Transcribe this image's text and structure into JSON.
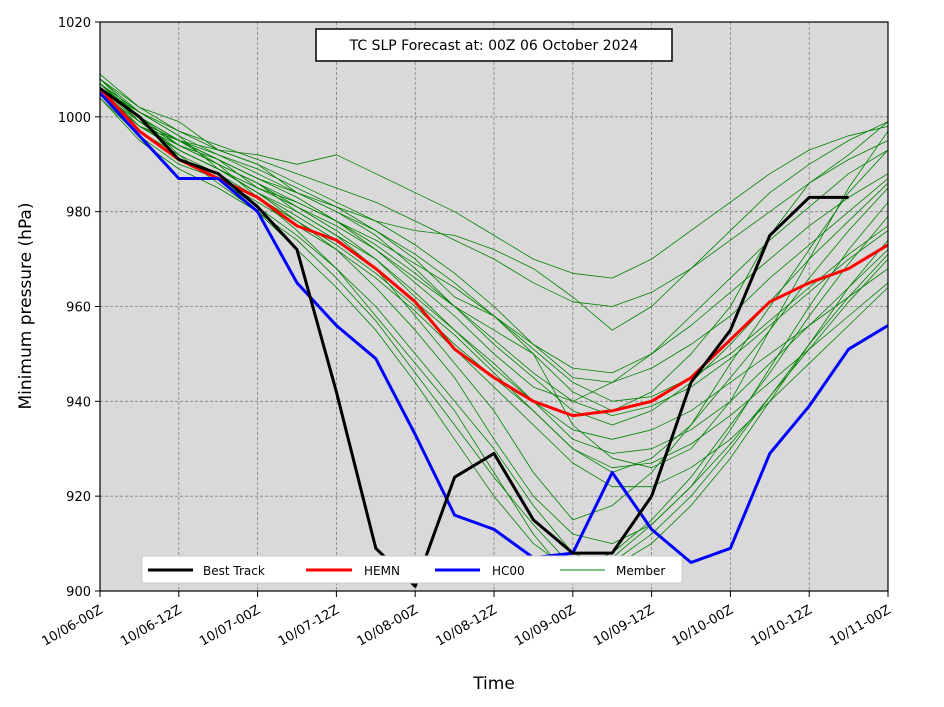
{
  "chart_data": {
    "type": "line",
    "title": "TC SLP Forecast at: 00Z 06 October 2024",
    "xlabel": "Time",
    "ylabel": "Minimum pressure (hPa)",
    "ylim": [
      900,
      1020
    ],
    "yticks": [
      900,
      920,
      940,
      960,
      980,
      1000,
      1020
    ],
    "xticks": [
      "10/06-00Z",
      "10/06-12Z",
      "10/07-00Z",
      "10/07-12Z",
      "10/08-00Z",
      "10/08-12Z",
      "10/09-00Z",
      "10/09-12Z",
      "10/10-00Z",
      "10/10-12Z",
      "10/11-00Z"
    ],
    "x_step_hours": 6,
    "grid": true,
    "legend_position": "bottom",
    "series": [
      {
        "name": "Best Track",
        "color": "#000000",
        "values": [
          1006,
          1000,
          991,
          988,
          981,
          972,
          942,
          909,
          901,
          924,
          929,
          915,
          908,
          908,
          920,
          944,
          955,
          975,
          983,
          983
        ]
      },
      {
        "name": "HEMN",
        "color": "#ff0000",
        "values": [
          1006,
          997,
          991,
          987,
          983,
          977,
          974,
          968,
          961,
          951,
          945,
          940,
          937,
          938,
          940,
          945,
          953,
          961,
          965,
          968,
          973
        ]
      },
      {
        "name": "HC00",
        "color": "#0000ff",
        "values": [
          1005,
          996,
          987,
          987,
          980,
          965,
          956,
          949,
          933,
          916,
          913,
          907,
          908,
          925,
          913,
          906,
          909,
          929,
          939,
          951,
          956
        ]
      },
      {
        "name": "Member",
        "color": "#008000",
        "members": [
          [
            1009,
            1002,
            999,
            993,
            990,
            984,
            980,
            976,
            970,
            962,
            958,
            950,
            935,
            928,
            926,
            930,
            940,
            955,
            970,
            985,
            997
          ],
          [
            1007,
            1000,
            994,
            990,
            986,
            980,
            975,
            968,
            958,
            948,
            938,
            925,
            915,
            918,
            925,
            935,
            948,
            960,
            972,
            984,
            993
          ],
          [
            1006,
            998,
            995,
            991,
            985,
            982,
            978,
            972,
            966,
            960,
            955,
            950,
            942,
            938,
            942,
            950,
            960,
            975,
            986,
            992,
            999
          ],
          [
            1008,
            1001,
            996,
            989,
            984,
            978,
            972,
            964,
            955,
            945,
            932,
            920,
            912,
            910,
            914,
            922,
            934,
            947,
            960,
            972,
            982
          ],
          [
            1005,
            997,
            992,
            988,
            983,
            978,
            973,
            967,
            960,
            952,
            945,
            938,
            930,
            925,
            928,
            935,
            945,
            955,
            966,
            976,
            985
          ],
          [
            1004,
            996,
            990,
            987,
            981,
            975,
            968,
            960,
            950,
            940,
            930,
            918,
            908,
            905,
            910,
            918,
            928,
            940,
            952,
            964,
            974
          ],
          [
            1007,
            999,
            993,
            989,
            985,
            981,
            977,
            972,
            965,
            958,
            950,
            943,
            940,
            944,
            950,
            958,
            966,
            974,
            981,
            988,
            993
          ],
          [
            1006,
            1000,
            994,
            991,
            987,
            984,
            980,
            975,
            968,
            960,
            952,
            945,
            938,
            935,
            938,
            944,
            952,
            961,
            970,
            978,
            986
          ],
          [
            1005,
            998,
            993,
            989,
            984,
            980,
            975,
            970,
            962,
            955,
            948,
            940,
            932,
            929,
            930,
            934,
            940,
            948,
            956,
            964,
            972
          ],
          [
            1008,
            1002,
            997,
            993,
            990,
            986,
            982,
            978,
            973,
            967,
            960,
            952,
            945,
            944,
            947,
            952,
            958,
            966,
            973,
            980,
            987
          ],
          [
            1006,
            999,
            995,
            990,
            983,
            976,
            968,
            958,
            948,
            938,
            925,
            912,
            902,
            906,
            912,
            920,
            930,
            941,
            952,
            962,
            971
          ],
          [
            1007,
            1001,
            996,
            992,
            988,
            984,
            981,
            978,
            976,
            975,
            972,
            968,
            962,
            955,
            960,
            968,
            976,
            984,
            990,
            995,
            999
          ],
          [
            1005,
            997,
            991,
            987,
            982,
            977,
            972,
            966,
            959,
            951,
            943,
            935,
            927,
            922,
            922,
            926,
            932,
            940,
            948,
            956,
            964
          ],
          [
            1006,
            1000,
            995,
            993,
            992,
            990,
            992,
            988,
            984,
            980,
            975,
            970,
            967,
            966,
            970,
            976,
            982,
            988,
            993,
            996,
            998
          ],
          [
            1004,
            995,
            989,
            985,
            980,
            974,
            966,
            957,
            946,
            935,
            924,
            914,
            905,
            908,
            915,
            924,
            935,
            946,
            958,
            969,
            979
          ],
          [
            1007,
            999,
            994,
            990,
            986,
            982,
            978,
            974,
            969,
            964,
            958,
            952,
            947,
            946,
            950,
            956,
            963,
            970,
            977,
            983,
            988
          ],
          [
            1006,
            998,
            993,
            989,
            984,
            979,
            974,
            968,
            961,
            954,
            946,
            938,
            930,
            926,
            927,
            931,
            937,
            944,
            951,
            958,
            965
          ],
          [
            1005,
            999,
            995,
            991,
            987,
            983,
            978,
            973,
            967,
            960,
            953,
            946,
            940,
            937,
            939,
            943,
            949,
            956,
            963,
            970,
            976
          ],
          [
            1008,
            1000,
            992,
            986,
            980,
            972,
            964,
            955,
            944,
            932,
            920,
            910,
            904,
            907,
            914,
            922,
            931,
            941,
            951,
            961,
            970
          ],
          [
            1006,
            1001,
            997,
            994,
            991,
            988,
            985,
            982,
            978,
            974,
            970,
            965,
            961,
            960,
            963,
            968,
            974,
            980,
            986,
            991,
            995
          ],
          [
            1005,
            998,
            994,
            990,
            986,
            981,
            976,
            970,
            963,
            955,
            947,
            940,
            934,
            932,
            934,
            938,
            944,
            950,
            956,
            962,
            968
          ],
          [
            1007,
            1000,
            995,
            992,
            989,
            985,
            981,
            976,
            971,
            965,
            958,
            951,
            944,
            940,
            941,
            945,
            950,
            957,
            964,
            971,
            977
          ]
        ]
      }
    ]
  }
}
